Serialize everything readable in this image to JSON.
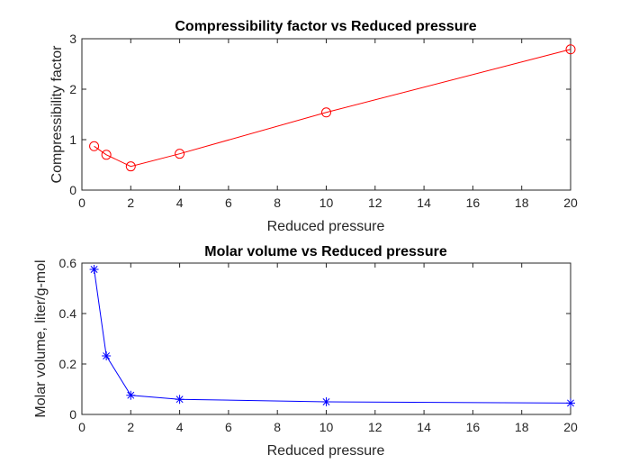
{
  "chart_data": [
    {
      "type": "line",
      "title": "Compressibility factor vs Reduced pressure",
      "xlabel": "Reduced pressure",
      "ylabel": "Compressibility factor",
      "xlim": [
        0,
        20
      ],
      "ylim": [
        0,
        3
      ],
      "xticks": [
        "0",
        "2",
        "4",
        "6",
        "8",
        "10",
        "12",
        "14",
        "16",
        "18",
        "20"
      ],
      "yticks": [
        "0",
        "1",
        "2",
        "3"
      ],
      "grid": false,
      "marker": "circle",
      "color": "#ff0000",
      "series": [
        {
          "x": [
            0.5,
            1,
            2,
            4,
            10,
            20
          ],
          "y": [
            0.87,
            0.7,
            0.47,
            0.72,
            1.54,
            2.79
          ]
        }
      ]
    },
    {
      "type": "line",
      "title": "Molar volume vs Reduced pressure",
      "xlabel": "Reduced pressure",
      "ylabel": "Molar volume, liter/g-mol",
      "xlim": [
        0,
        20
      ],
      "ylim": [
        0,
        0.6
      ],
      "xticks": [
        "0",
        "2",
        "4",
        "6",
        "8",
        "10",
        "12",
        "14",
        "16",
        "18",
        "20"
      ],
      "yticks": [
        "0",
        "0.2",
        "0.4",
        "0.6"
      ],
      "grid": false,
      "marker": "asterisk",
      "color": "#0000ff",
      "series": [
        {
          "x": [
            0.5,
            1,
            2,
            4,
            10,
            20
          ],
          "y": [
            0.575,
            0.232,
            0.076,
            0.06,
            0.05,
            0.045
          ]
        }
      ]
    }
  ]
}
